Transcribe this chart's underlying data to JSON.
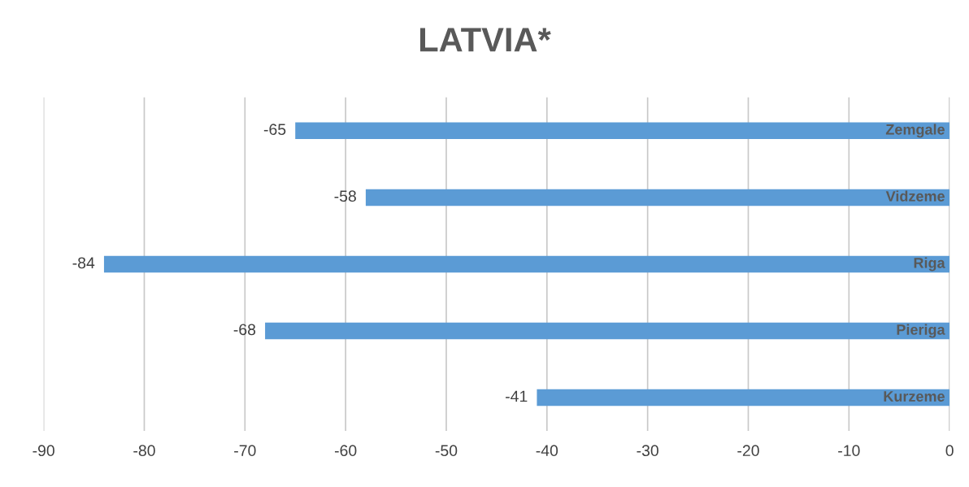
{
  "chart_data": {
    "type": "bar",
    "orientation": "horizontal",
    "title": "LATVIA*",
    "categories": [
      "Zemgale",
      "Vidzeme",
      "Riga",
      "Pieriga",
      "Kurzeme"
    ],
    "values": [
      -65,
      -58,
      -84,
      -68,
      -41
    ],
    "color": "#5b9bd5",
    "xlim": [
      -90,
      0
    ],
    "xticks": [
      -90,
      -80,
      -70,
      -60,
      -50,
      -40,
      -30,
      -20,
      -10,
      0
    ],
    "grid": "x",
    "data_labels": true
  }
}
